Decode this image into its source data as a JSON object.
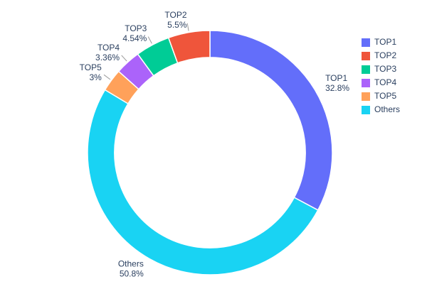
{
  "chart_data": {
    "type": "pie",
    "subtype": "donut",
    "title": "",
    "hole": 0.78,
    "direction": "clockwise",
    "rotation_start": "top",
    "legend_position": "right",
    "draw_order": [
      "TOP1",
      "Others",
      "TOP5",
      "TOP4",
      "TOP3",
      "TOP2"
    ],
    "series": [
      {
        "name": "TOP1",
        "value": 32.8,
        "label": "32.8%",
        "color": "#636EFA"
      },
      {
        "name": "TOP2",
        "value": 5.5,
        "label": "5.5%",
        "color": "#EF553B"
      },
      {
        "name": "TOP3",
        "value": 4.54,
        "label": "4.54%",
        "color": "#00CC96"
      },
      {
        "name": "TOP4",
        "value": 3.36,
        "label": "3.36%",
        "color": "#AB63FA"
      },
      {
        "name": "TOP5",
        "value": 3.0,
        "label": "3%",
        "color": "#FFA15A"
      },
      {
        "name": "Others",
        "value": 50.8,
        "label": "50.8%",
        "color": "#19D3F3"
      }
    ],
    "legend": [
      "TOP1",
      "TOP2",
      "TOP3",
      "TOP4",
      "TOP5",
      "Others"
    ]
  },
  "colors": {
    "text": "#2a3f5f",
    "background": "#ffffff",
    "leader_line": "#999999"
  }
}
